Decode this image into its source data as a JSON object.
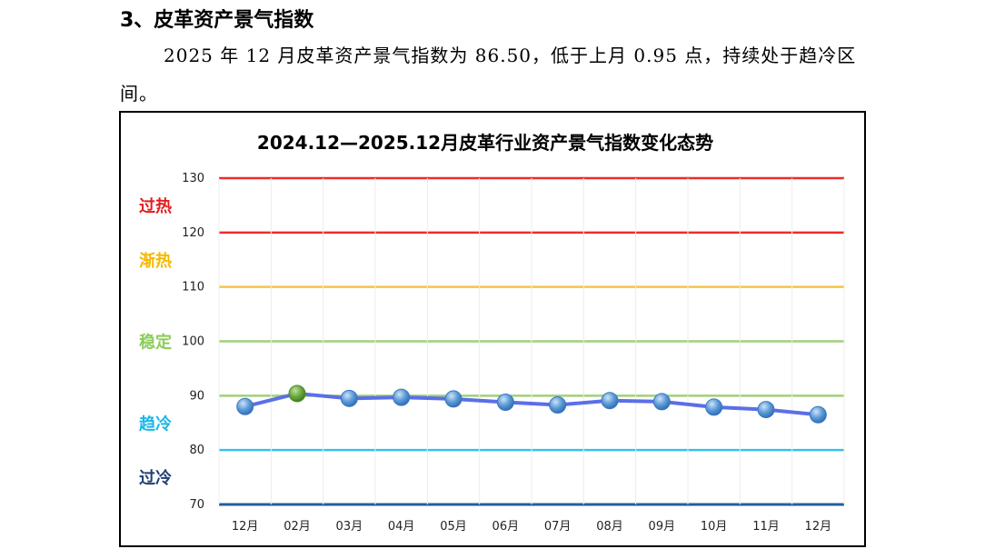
{
  "document": {
    "heading": "3、皮革资产景气指数",
    "paragraph": "2025 年 12 月皮革资产景气指数为 86.50，低于上月 0.95 点，持续处于趋冷区间。"
  },
  "chart_data": {
    "type": "line",
    "title": "2024.12—2025.12月皮革行业资产景气指数变化态势",
    "categories": [
      "12月",
      "02月",
      "03月",
      "04月",
      "05月",
      "06月",
      "07月",
      "08月",
      "09月",
      "10月",
      "11月",
      "12月"
    ],
    "values": [
      88.0,
      90.4,
      89.5,
      89.7,
      89.4,
      88.8,
      88.3,
      89.1,
      88.9,
      87.9,
      87.45,
      86.5
    ],
    "highlight_index": 1,
    "ylim": [
      70,
      130
    ],
    "y_ticks": [
      70,
      80,
      90,
      100,
      110,
      120,
      130
    ],
    "xlabel": "",
    "ylabel": "",
    "threshold_lines": [
      {
        "value": 130,
        "color": "#ee2b2b"
      },
      {
        "value": 120,
        "color": "#ee2b2b"
      },
      {
        "value": 110,
        "color": "#f6c445"
      },
      {
        "value": 100,
        "color": "#9fd07a"
      },
      {
        "value": 90,
        "color": "#9fd07a"
      },
      {
        "value": 80,
        "color": "#33c2ee"
      },
      {
        "value": 70,
        "color": "#1f5fa0"
      }
    ],
    "zones": [
      {
        "label": "过热",
        "value": 125,
        "color": "#e21d1d"
      },
      {
        "label": "渐热",
        "value": 115,
        "color": "#f5b800"
      },
      {
        "label": "稳定",
        "value": 100,
        "color": "#8ccc5a"
      },
      {
        "label": "趋冷",
        "value": 85,
        "color": "#18b7e8"
      },
      {
        "label": "过冷",
        "value": 75,
        "color": "#1e3f74"
      }
    ],
    "colors": {
      "line": "#5b6fe8",
      "marker": "#5b9ad8",
      "highlight_marker": "#6aa83c"
    },
    "grid": true,
    "legend": "none"
  }
}
